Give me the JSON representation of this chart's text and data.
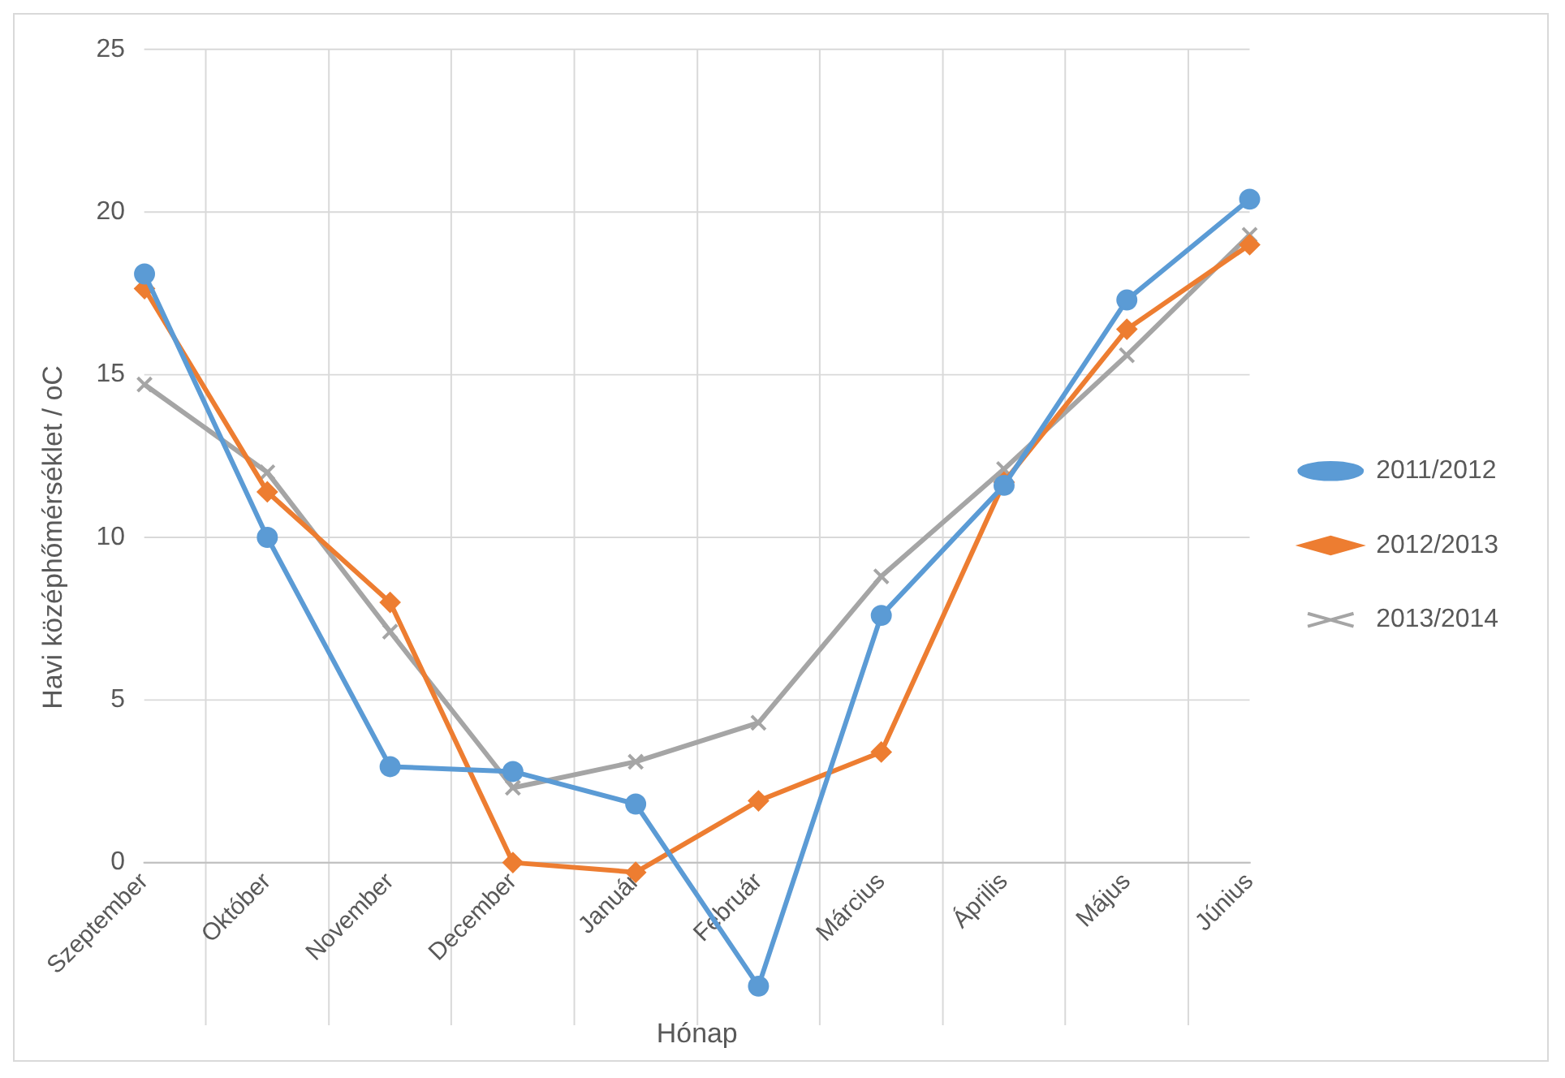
{
  "chart_data": {
    "type": "line",
    "xlabel": "Hónap",
    "ylabel": "Havi középhőmérséklet / oC",
    "categories": [
      "Szeptember",
      "Október",
      "November",
      "December",
      "Január",
      "Február",
      "Március",
      "Április",
      "Május",
      "Június"
    ],
    "series": [
      {
        "name": "2011/2012",
        "color": "#5b9bd5",
        "marker": "circle",
        "values": [
          18.1,
          10.0,
          2.95,
          2.8,
          1.8,
          -3.8,
          7.6,
          11.6,
          17.3,
          20.4
        ]
      },
      {
        "name": "2012/2013",
        "color": "#ed7d31",
        "marker": "diamond",
        "values": [
          17.65,
          11.4,
          8.0,
          0.0,
          -0.3,
          1.9,
          3.4,
          11.7,
          16.4,
          19.0
        ]
      },
      {
        "name": "2013/2014",
        "color": "#a5a5a5",
        "marker": "cross",
        "values": [
          14.7,
          12.0,
          7.1,
          2.3,
          3.1,
          4.3,
          8.8,
          12.1,
          15.6,
          19.3
        ]
      }
    ],
    "ylim": [
      -5,
      25
    ],
    "yticks": [
      0,
      5,
      10,
      15,
      20,
      25
    ],
    "grid": true,
    "legend": "right",
    "line_style": "solid"
  }
}
